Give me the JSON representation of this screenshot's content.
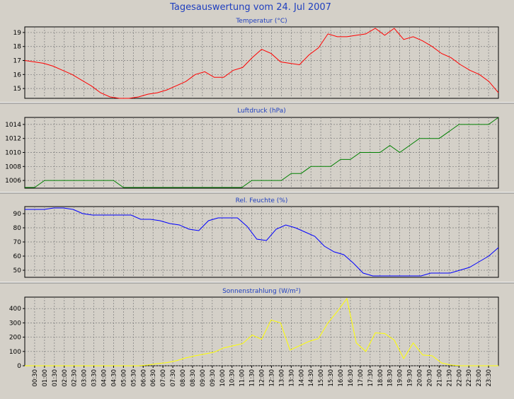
{
  "page_title": "Tagesauswertung vom 24. Jul 2007",
  "colors": {
    "background": "#d4d0c8",
    "plot_background": "#d4d0c8",
    "grid": "#7a7a7a",
    "title": "#1f3fbf",
    "temperature": "#ff0000",
    "pressure": "#008000",
    "humidity": "#0000ff",
    "solar": "#ffff00"
  },
  "x_ticks": [
    "00:30",
    "01:00",
    "01:30",
    "02:00",
    "02:30",
    "03:00",
    "03:30",
    "04:00",
    "04:30",
    "05:00",
    "05:30",
    "06:00",
    "06:30",
    "07:00",
    "07:30",
    "08:00",
    "08:30",
    "09:00",
    "09:30",
    "10:00",
    "10:30",
    "11:00",
    "11:30",
    "12:00",
    "12:30",
    "13:00",
    "13:30",
    "14:00",
    "14:30",
    "15:00",
    "15:30",
    "16:00",
    "16:30",
    "17:00",
    "17:30",
    "18:00",
    "18:30",
    "19:00",
    "19:30",
    "20:00",
    "20:30",
    "21:00",
    "21:30",
    "22:00",
    "22:30",
    "23:00",
    "23:30"
  ],
  "chart_data": [
    {
      "type": "line",
      "title": "Temperatur (°C)",
      "ylim": [
        14.3,
        19.4
      ],
      "yticks": [
        15,
        16,
        17,
        18,
        19
      ],
      "grid": true,
      "series": [
        {
          "color": "#ff0000",
          "values": [
            17.0,
            16.9,
            16.8,
            16.6,
            16.3,
            16.0,
            15.6,
            15.2,
            14.7,
            14.4,
            14.3,
            14.3,
            14.4,
            14.6,
            14.7,
            14.9,
            15.2,
            15.5,
            16.0,
            16.2,
            15.8,
            15.8,
            16.3,
            16.5,
            17.2,
            17.8,
            17.5,
            16.9,
            16.8,
            16.7,
            17.4,
            17.9,
            18.9,
            18.7,
            18.7,
            18.8,
            18.9,
            19.3,
            18.8,
            19.3,
            18.5,
            18.7,
            18.4,
            18.0,
            17.5,
            17.2,
            16.7,
            16.3,
            16.0,
            15.5,
            14.7
          ]
        }
      ]
    },
    {
      "type": "line",
      "title": "Luftdruck (hPa)",
      "ylim": [
        1004.9,
        1015
      ],
      "yticks": [
        1006,
        1008,
        1010,
        1012,
        1014
      ],
      "grid": true,
      "series": [
        {
          "color": "#008000",
          "values": [
            1005,
            1005,
            1006,
            1006,
            1006,
            1006,
            1006,
            1006,
            1006,
            1006,
            1005,
            1005,
            1005,
            1005,
            1005,
            1005,
            1005,
            1005,
            1005,
            1005,
            1005,
            1005,
            1005,
            1006,
            1006,
            1006,
            1006,
            1007,
            1007,
            1008,
            1008,
            1008,
            1009,
            1009,
            1010,
            1010,
            1010,
            1011,
            1010,
            1011,
            1012,
            1012,
            1012,
            1013,
            1014,
            1014,
            1014,
            1014,
            1015
          ]
        }
      ]
    },
    {
      "type": "line",
      "title": "Rel. Feuchte (%)",
      "ylim": [
        45,
        95
      ],
      "yticks": [
        50,
        60,
        70,
        80,
        90
      ],
      "grid": true,
      "series": [
        {
          "color": "#0000ff",
          "values": [
            93,
            93,
            93,
            94,
            94,
            93,
            90,
            89,
            89,
            89,
            89,
            89,
            86,
            86,
            85,
            83,
            82,
            79,
            78,
            85,
            87,
            87,
            87,
            81,
            72,
            71,
            79,
            82,
            80,
            77,
            74,
            67,
            63,
            61,
            55,
            48,
            46,
            46,
            46,
            46,
            46,
            46,
            48,
            48,
            48,
            50,
            52,
            56,
            60,
            66
          ]
        }
      ]
    },
    {
      "type": "line",
      "title": "Sonnenstrahlung (W/m²)",
      "ylim": [
        0,
        480
      ],
      "yticks": [
        0,
        100,
        200,
        300,
        400
      ],
      "grid": true,
      "series": [
        {
          "color": "#ffff00",
          "values": [
            0,
            0,
            0,
            0,
            0,
            0,
            0,
            0,
            0,
            0,
            0,
            0,
            0,
            5,
            15,
            22,
            35,
            55,
            70,
            82,
            95,
            125,
            140,
            155,
            215,
            185,
            320,
            300,
            110,
            140,
            170,
            190,
            300,
            380,
            470,
            160,
            100,
            230,
            225,
            180,
            50,
            160,
            75,
            70,
            20,
            5,
            0,
            0,
            0,
            0,
            0
          ]
        }
      ]
    }
  ]
}
